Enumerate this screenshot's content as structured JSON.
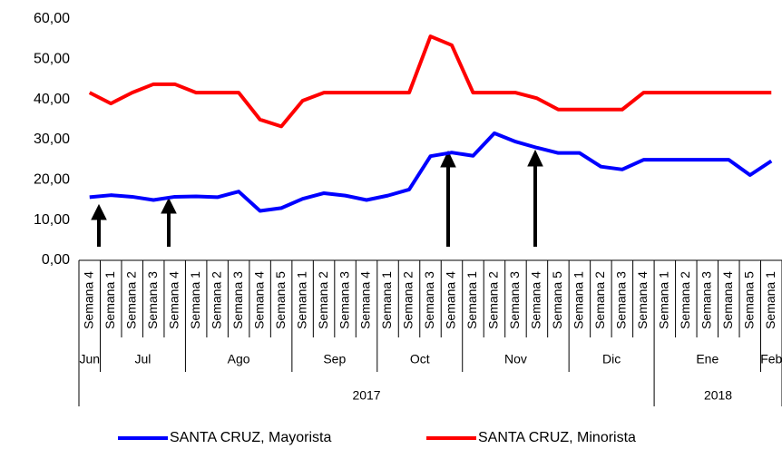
{
  "chart_data": {
    "type": "line",
    "categories": [
      "Semana 4",
      "Semana 1",
      "Semana 2",
      "Semana 3",
      "Semana 4",
      "Semana 1",
      "Semana 2",
      "Semana 3",
      "Semana 4",
      "Semana 5",
      "Semana 1",
      "Semana 2",
      "Semana 3",
      "Semana 4",
      "Semana 1",
      "Semana 2",
      "Semana 3",
      "Semana 4",
      "Semana 1",
      "Semana 2",
      "Semana 3",
      "Semana 4",
      "Semana 5",
      "Semana 1",
      "Semana 2",
      "Semana 3",
      "Semana 4",
      "Semana 1",
      "Semana 2",
      "Semana 3",
      "Semana 4",
      "Semana 5",
      "Semana 1"
    ],
    "category_months": [
      "Jun",
      "Jul",
      null,
      null,
      null,
      "Ago",
      null,
      null,
      null,
      null,
      "Sep",
      null,
      null,
      null,
      "Oct",
      null,
      null,
      null,
      "Nov",
      null,
      null,
      null,
      null,
      "Dic",
      null,
      null,
      null,
      "Ene",
      null,
      null,
      null,
      null,
      "Feb"
    ],
    "category_years": [
      "2017",
      null,
      null,
      null,
      null,
      null,
      null,
      null,
      null,
      null,
      null,
      null,
      null,
      null,
      null,
      null,
      null,
      null,
      null,
      null,
      null,
      null,
      null,
      null,
      null,
      null,
      null,
      "2018",
      null,
      null,
      null,
      null,
      null
    ],
    "series": [
      {
        "name": "SANTA CRUZ, Mayorista",
        "color": "#0000ff",
        "values": [
          15.7,
          16.2,
          15.8,
          15.0,
          15.8,
          15.9,
          15.7,
          17.1,
          12.3,
          13.0,
          15.3,
          16.7,
          16.1,
          15.0,
          16.1,
          17.6,
          25.9,
          26.8,
          26.0,
          31.6,
          29.5,
          28.0,
          26.7,
          26.7,
          23.3,
          22.6,
          25.0,
          25.0,
          25.0,
          25.0,
          25.0,
          21.2,
          24.7
        ]
      },
      {
        "name": "SANTA CRUZ, Minorista",
        "color": "#ff0000",
        "values": [
          41.7,
          39.0,
          41.7,
          43.8,
          43.8,
          41.7,
          41.7,
          41.7,
          35.0,
          33.3,
          39.7,
          41.7,
          41.7,
          41.7,
          41.7,
          41.7,
          55.7,
          53.5,
          41.7,
          41.7,
          41.7,
          40.3,
          37.5,
          37.5,
          37.5,
          37.5,
          41.7,
          41.7,
          41.7,
          41.7,
          41.7,
          41.7,
          41.7
        ]
      }
    ],
    "ylim": [
      0,
      60
    ],
    "yticks": [
      {
        "value": 0,
        "label": "0,00"
      },
      {
        "value": 10,
        "label": "10,00"
      },
      {
        "value": 20,
        "label": "20,00"
      },
      {
        "value": 30,
        "label": "30,00"
      },
      {
        "value": 40,
        "label": "40,00"
      },
      {
        "value": 50,
        "label": "50,00"
      },
      {
        "value": 60,
        "label": "60,00"
      }
    ],
    "grid": false
  }
}
